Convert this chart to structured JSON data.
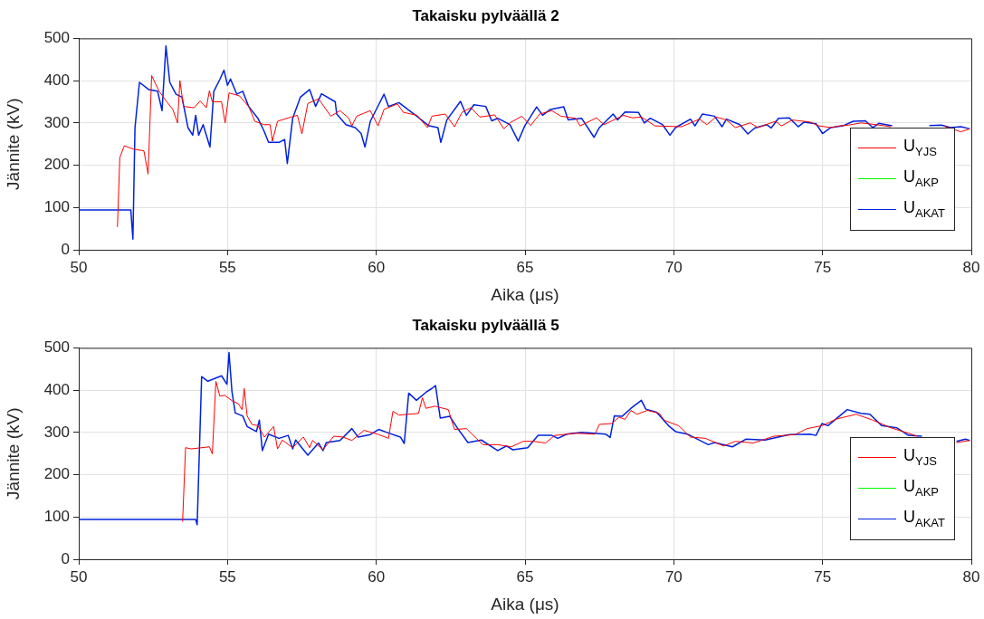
{
  "chart_data": [
    {
      "type": "line",
      "title": "Takaisku pylväällä 2",
      "xlabel": "Aika (μs)",
      "ylabel": "Jännite (kV)",
      "xlim": [
        50,
        80
      ],
      "xticks": [
        50,
        55,
        60,
        65,
        70,
        75,
        80
      ],
      "ylim": [
        0,
        500
      ],
      "yticks": [
        0,
        100,
        200,
        300,
        400,
        500
      ],
      "grid": true,
      "legend": "bottom right",
      "marker": "none",
      "line_style": "solid",
      "series": [
        {
          "name": "U$_{YJS}$",
          "color": "#ff0000",
          "x": [
            51.3,
            51.38,
            51.53,
            51.84,
            52.19,
            52.33,
            52.45,
            52.7,
            52.96,
            53.16,
            53.32,
            53.4,
            53.52,
            53.88,
            54.08,
            54.29,
            54.39,
            54.49,
            54.8,
            54.92,
            55.05,
            55.4,
            55.71,
            55.92,
            56.22,
            56.43,
            56.51,
            56.68,
            57.14,
            57.35,
            57.5,
            57.7,
            58.06,
            58.47,
            58.78,
            59.08,
            59.18,
            59.34,
            59.8,
            60.06,
            60.26,
            60.71,
            60.91,
            61.37,
            61.72,
            61.87,
            62.32,
            62.63,
            62.88,
            63.18,
            63.48,
            63.98,
            64.29,
            64.49,
            64.89,
            65.19,
            65.49,
            65.9,
            66.2,
            66.7,
            66.85,
            67.4,
            67.65,
            68.31,
            68.61,
            68.91,
            69.37,
            70.26,
            70.86,
            71.11,
            71.42,
            71.77,
            72.07,
            72.57,
            72.82,
            73.42,
            73.62,
            73.98,
            74.58,
            74.88,
            75.28,
            75.58,
            75.88,
            76.29,
            76.79,
            77.29,
            77.6,
            78.9,
            79.1,
            79.65,
            79.95
          ],
          "values": [
            54,
            218,
            246,
            238,
            234,
            179,
            412,
            375,
            350,
            332,
            300,
            400,
            339,
            336,
            352,
            336,
            376,
            350,
            350,
            300,
            371,
            364,
            339,
            304,
            296,
            296,
            257,
            304,
            314,
            318,
            274,
            346,
            357,
            316,
            329,
            311,
            293,
            316,
            329,
            293,
            332,
            345,
            325,
            318,
            289,
            316,
            321,
            291,
            325,
            336,
            314,
            319,
            286,
            300,
            316,
            294,
            321,
            329,
            316,
            311,
            293,
            312,
            296,
            318,
            312,
            314,
            293,
            291,
            309,
            296,
            314,
            307,
            289,
            300,
            289,
            304,
            293,
            307,
            302,
            293,
            289,
            293,
            295,
            300,
            296,
            291,
            null,
            null,
            292,
            279,
            286
          ]
        },
        {
          "name": "U$_{AKP}$",
          "color": "#00ff00"
        },
        {
          "name": "U$_{AKAT}$",
          "color": "#0022dd",
          "x": [
            50,
            51.75,
            51.82,
            51.89,
            52.04,
            52.35,
            52.65,
            52.8,
            52.93,
            53.06,
            53.27,
            53.47,
            53.67,
            53.83,
            53.93,
            54.03,
            54.18,
            54.41,
            54.54,
            54.75,
            54.88,
            55.0,
            55.1,
            55.31,
            55.51,
            55.71,
            56.02,
            56.22,
            56.38,
            56.73,
            56.92,
            57.01,
            57.19,
            57.45,
            57.76,
            57.96,
            58.16,
            58.62,
            58.67,
            58.98,
            59.29,
            59.49,
            59.62,
            59.8,
            60.08,
            60.26,
            60.41,
            60.76,
            61.27,
            61.77,
            62.07,
            62.17,
            62.37,
            62.83,
            63.03,
            63.28,
            63.68,
            63.88,
            64.08,
            64.49,
            64.77,
            64.99,
            65.39,
            65.59,
            65.85,
            66.3,
            66.45,
            66.9,
            67.32,
            67.5,
            67.96,
            68.11,
            68.36,
            68.81,
            69.01,
            69.21,
            69.62,
            69.87,
            70.06,
            70.56,
            70.71,
            70.96,
            71.37,
            71.62,
            71.77,
            72.22,
            72.49,
            72.72,
            73.12,
            73.27,
            73.52,
            73.88,
            74.18,
            74.38,
            74.78,
            75.0,
            75.28,
            75.68,
            76.03,
            76.44,
            76.69,
            76.89,
            77.34,
            77.6,
            78.5,
            78.59,
            79.0,
            79.3,
            79.65,
            79.95
          ],
          "values": [
            94,
            94,
            25,
            289,
            396,
            379,
            375,
            329,
            482,
            396,
            368,
            361,
            289,
            271,
            318,
            271,
            296,
            243,
            375,
            404,
            425,
            389,
            404,
            368,
            375,
            339,
            311,
            282,
            254,
            254,
            261,
            204,
            311,
            361,
            379,
            339,
            369,
            350,
            321,
            296,
            289,
            275,
            243,
            304,
            343,
            368,
            339,
            348,
            321,
            293,
            289,
            254,
            307,
            351,
            318,
            343,
            339,
            305,
            311,
            296,
            257,
            293,
            338,
            318,
            332,
            338,
            307,
            311,
            266,
            289,
            321,
            307,
            326,
            325,
            300,
            311,
            296,
            271,
            289,
            309,
            293,
            321,
            316,
            291,
            309,
            296,
            274,
            288,
            296,
            288,
            311,
            312,
            291,
            302,
            298,
            275,
            289,
            293,
            304,
            305,
            289,
            299,
            293,
            null,
            null,
            294,
            295,
            289,
            291,
            286
          ]
        }
      ]
    },
    {
      "type": "line",
      "title": "Takaisku pylväällä 5",
      "xlabel": "Aika (μs)",
      "ylabel": "Jännite (kV)",
      "xlim": [
        50,
        80
      ],
      "xticks": [
        50,
        55,
        60,
        65,
        70,
        75,
        80
      ],
      "ylim": [
        0,
        500
      ],
      "yticks": [
        0,
        100,
        200,
        300,
        400,
        500
      ],
      "grid": true,
      "legend": "bottom right",
      "marker": "none",
      "line_style": "solid",
      "series": [
        {
          "name": "U$_{YJS}$",
          "color": "#ff0000",
          "x": [
            53.49,
            53.59,
            53.78,
            54.39,
            54.49,
            54.61,
            54.74,
            54.9,
            55.15,
            55.36,
            55.49,
            55.56,
            55.66,
            55.82,
            56.02,
            56.24,
            56.55,
            56.68,
            56.84,
            57.19,
            57.55,
            57.76,
            57.86,
            58.21,
            58.57,
            58.88,
            59.18,
            59.59,
            60.08,
            60.41,
            60.56,
            60.76,
            61.42,
            61.55,
            61.67,
            61.97,
            62.42,
            62.63,
            63.03,
            63.58,
            64.08,
            64.54,
            64.94,
            65.29,
            65.69,
            66.0,
            66.7,
            67.35,
            67.5,
            67.91,
            68.16,
            68.36,
            68.56,
            68.76,
            69.11,
            69.52,
            69.67,
            70.16,
            70.56,
            71.06,
            71.67,
            72.07,
            72.67,
            73.37,
            74.08,
            74.48,
            74.98,
            75.48,
            76.13,
            76.69,
            77.29,
            77.89,
            78.19,
            79.4,
            79.5,
            79.95
          ],
          "values": [
            89,
            264,
            261,
            266,
            249,
            421,
            386,
            388,
            375,
            368,
            354,
            404,
            339,
            319,
            316,
            289,
            314,
            261,
            282,
            264,
            289,
            264,
            281,
            259,
            291,
            289,
            281,
            305,
            295,
            286,
            350,
            341,
            345,
            382,
            357,
            362,
            354,
            307,
            309,
            271,
            271,
            266,
            279,
            279,
            275,
            293,
            298,
            296,
            319,
            321,
            336,
            331,
            352,
            343,
            352,
            345,
            329,
            316,
            289,
            286,
            268,
            279,
            275,
            291,
            295,
            309,
            316,
            332,
            343,
            329,
            311,
            298,
            291,
            null,
            276,
            281
          ]
        },
        {
          "name": "U$_{AKP}$",
          "color": "#00ff00"
        },
        {
          "name": "U$_{AKAT}$",
          "color": "#0022dd",
          "x": [
            50,
            53.93,
            53.98,
            54.13,
            54.34,
            54.8,
            54.98,
            55.05,
            55.15,
            55.26,
            55.51,
            55.66,
            55.97,
            56.07,
            56.17,
            56.38,
            56.73,
            57.04,
            57.19,
            57.29,
            57.7,
            58.06,
            58.21,
            58.32,
            58.78,
            59.18,
            59.39,
            59.8,
            60.08,
            60.36,
            60.81,
            60.94,
            61.09,
            61.35,
            61.67,
            61.87,
            61.99,
            62.15,
            62.47,
            62.72,
            63.08,
            63.53,
            64.08,
            64.38,
            64.59,
            65.09,
            65.44,
            65.9,
            66.1,
            66.4,
            66.9,
            67.71,
            67.86,
            68.0,
            68.26,
            68.56,
            68.91,
            69.06,
            69.42,
            69.82,
            70.06,
            70.46,
            71.16,
            71.37,
            71.97,
            72.42,
            73.07,
            73.88,
            74.58,
            74.78,
            74.98,
            75.18,
            75.83,
            76.29,
            76.59,
            76.99,
            77.49,
            77.89,
            78.34,
            78.5,
            79.5,
            79.8,
            79.95
          ],
          "values": [
            94,
            94,
            82,
            432,
            421,
            434,
            414,
            489,
            396,
            346,
            339,
            314,
            302,
            329,
            257,
            296,
            286,
            293,
            261,
            282,
            246,
            275,
            257,
            276,
            281,
            309,
            289,
            295,
            307,
            300,
            289,
            274,
            393,
            376,
            395,
            404,
            411,
            334,
            338,
            311,
            276,
            282,
            257,
            268,
            259,
            264,
            293,
            293,
            286,
            296,
            300,
            296,
            288,
            339,
            338,
            357,
            376,
            355,
            348,
            316,
            302,
            296,
            271,
            276,
            266,
            284,
            282,
            295,
            296,
            293,
            321,
            316,
            354,
            345,
            343,
            316,
            311,
            293,
            291,
            null,
            279,
            284,
            281
          ]
        }
      ]
    }
  ]
}
